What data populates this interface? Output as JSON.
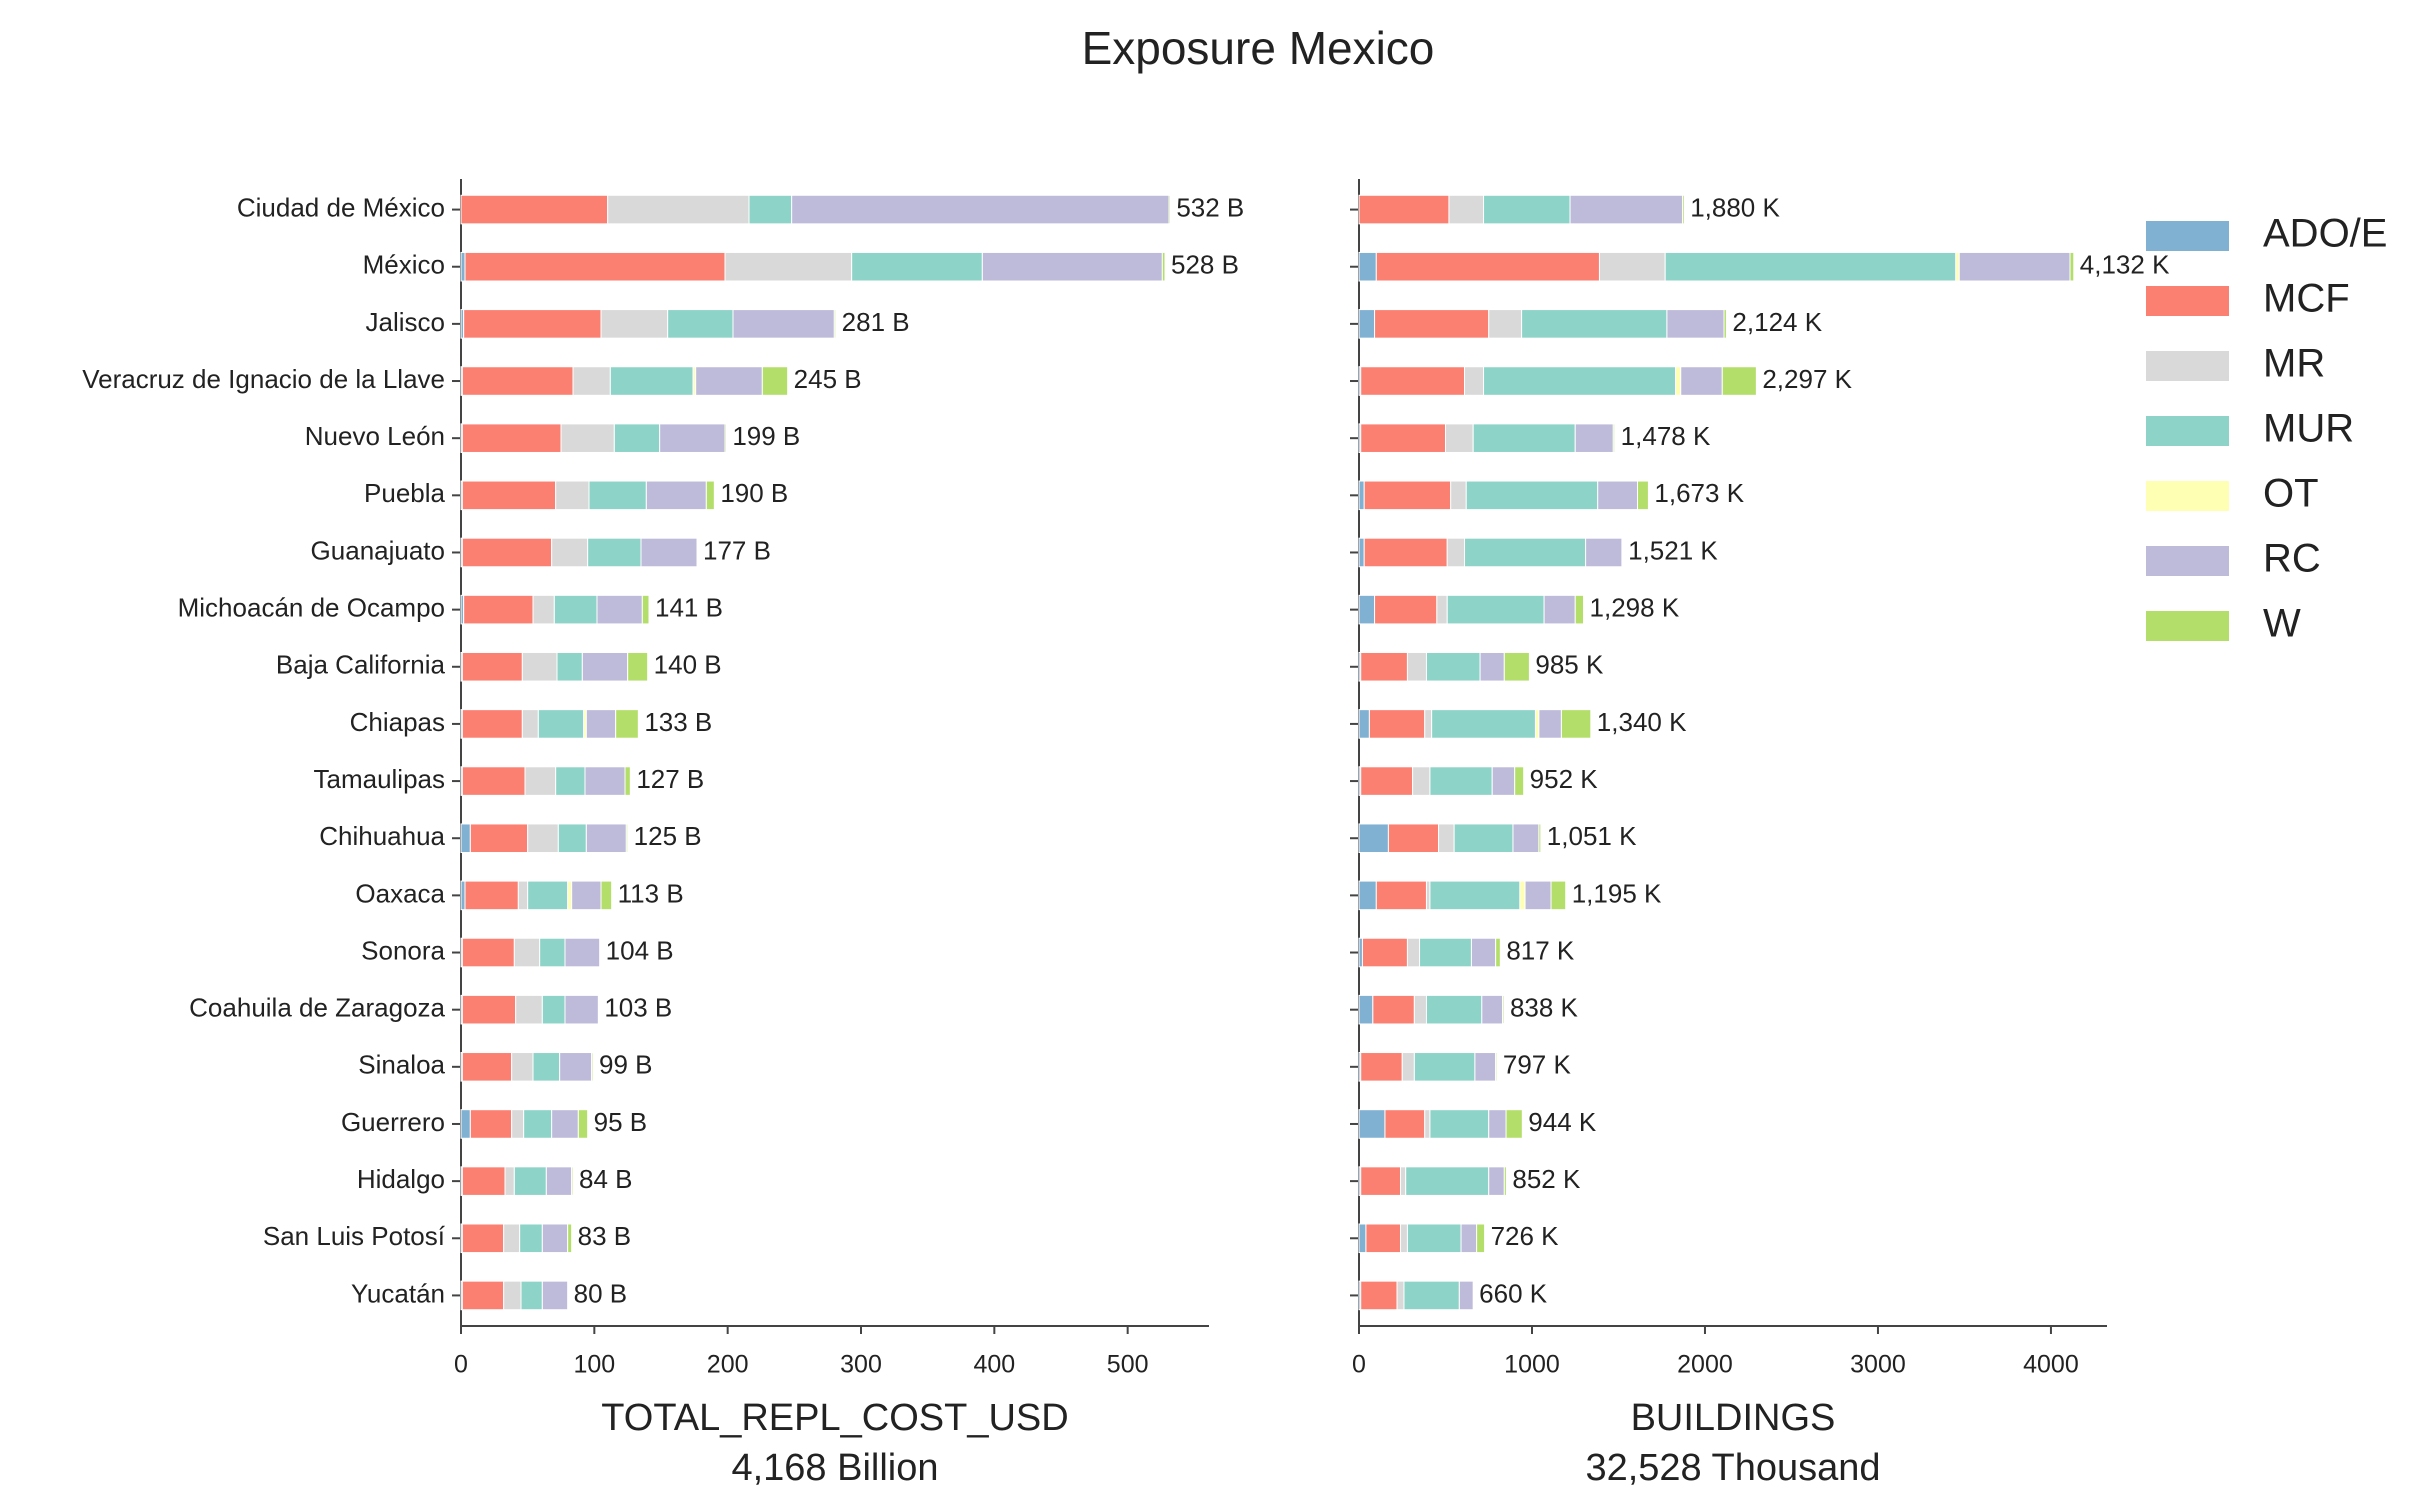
{
  "chart_data": {
    "type": "bar",
    "orientation": "horizontal",
    "stacked": true,
    "title": "Exposure Mexico",
    "legend": "upper right",
    "categories": [
      "Ciudad de México",
      "México",
      "Jalisco",
      "Veracruz de Ignacio de la Llave",
      "Nuevo León",
      "Puebla",
      "Guanajuato",
      "Michoacán de Ocampo",
      "Baja California",
      "Chiapas",
      "Tamaulipas",
      "Chihuahua",
      "Oaxaca",
      "Sonora",
      "Coahuila de Zaragoza",
      "Sinaloa",
      "Guerrero",
      "Hidalgo",
      "San Luis Potosí",
      "Yucatán"
    ],
    "series": [
      {
        "name": "ADO/E",
        "color": "#80b1d3"
      },
      {
        "name": "MCF",
        "color": "#fb8072"
      },
      {
        "name": "MR",
        "color": "#d9d9d9"
      },
      {
        "name": "MUR",
        "color": "#8dd3c7"
      },
      {
        "name": "OT",
        "color": "#ffffb3"
      },
      {
        "name": "RC",
        "color": "#bebada"
      },
      {
        "name": "W",
        "color": "#b3de69"
      }
    ],
    "panels": [
      {
        "xlabel": "TOTAL_REPL_COST_USD",
        "xlabel_total": "4,168 Billion",
        "xlim": [
          0,
          561
        ],
        "xticks": [
          0,
          100,
          200,
          300,
          400,
          500
        ],
        "values": [
          [
            0,
            3,
            2,
            1,
            1,
            1,
            1,
            2,
            1,
            1,
            1,
            7,
            3,
            1,
            1,
            1,
            7,
            1,
            1,
            1
          ],
          [
            110,
            195,
            103,
            83,
            74,
            70,
            67,
            52,
            45,
            45,
            47,
            43,
            40,
            39,
            40,
            37,
            31,
            32,
            31,
            31
          ],
          [
            106,
            95,
            50,
            28,
            40,
            25,
            27,
            16,
            26,
            12,
            23,
            23,
            7,
            19,
            20,
            16,
            9,
            7,
            12,
            13
          ],
          [
            32,
            98,
            49,
            62,
            34,
            43,
            40,
            32,
            19,
            34,
            22,
            21,
            30,
            19,
            17,
            20,
            21,
            24,
            17,
            16
          ],
          [
            0,
            0,
            0,
            2,
            0,
            0,
            0,
            0,
            0,
            2,
            0,
            0,
            3,
            0,
            0,
            0,
            0,
            0,
            0,
            0
          ],
          [
            283,
            135,
            76,
            50,
            49,
            45,
            42,
            34,
            34,
            22,
            30,
            30,
            22,
            26,
            25,
            24,
            20,
            19,
            19,
            19
          ],
          [
            1,
            2,
            1,
            19,
            1,
            6,
            0,
            5,
            15,
            17,
            4,
            1,
            8,
            0,
            0,
            1,
            7,
            1,
            3,
            0
          ]
        ],
        "totals": [
          532,
          528,
          281,
          245,
          199,
          190,
          177,
          141,
          140,
          133,
          127,
          125,
          113,
          104,
          103,
          99,
          95,
          84,
          83,
          80
        ],
        "total_labels": [
          "532 B",
          "528 B",
          "281 B",
          "245 B",
          "199 B",
          "190 B",
          "177 B",
          "141 B",
          "140 B",
          "133 B",
          "127 B",
          "125 B",
          "113 B",
          "104 B",
          "103 B",
          "99 B",
          "95 B",
          "84 B",
          "83 B",
          "80 B"
        ]
      },
      {
        "xlabel": "BUILDINGS",
        "xlabel_total": "32,528 Thousand",
        "xlim": [
          0,
          4324
        ],
        "xticks": [
          0,
          1000,
          2000,
          3000,
          4000
        ],
        "values": [
          [
            0,
            100,
            90,
            10,
            10,
            30,
            30,
            90,
            10,
            60,
            10,
            170,
            100,
            20,
            80,
            10,
            150,
            10,
            40,
            10
          ],
          [
            520,
            1290,
            660,
            600,
            490,
            500,
            480,
            360,
            270,
            320,
            300,
            290,
            290,
            260,
            240,
            240,
            230,
            230,
            200,
            210
          ],
          [
            200,
            380,
            190,
            110,
            160,
            90,
            100,
            60,
            110,
            40,
            100,
            90,
            20,
            70,
            70,
            70,
            30,
            30,
            40,
            40
          ],
          [
            500,
            1680,
            840,
            1110,
            590,
            760,
            700,
            560,
            310,
            600,
            360,
            340,
            520,
            300,
            320,
            350,
            340,
            480,
            310,
            320
          ],
          [
            0,
            20,
            0,
            30,
            0,
            0,
            0,
            0,
            0,
            20,
            0,
            0,
            30,
            0,
            0,
            0,
            0,
            0,
            0,
            0
          ],
          [
            650,
            640,
            330,
            240,
            220,
            230,
            210,
            180,
            140,
            130,
            130,
            150,
            150,
            140,
            120,
            120,
            100,
            90,
            90,
            80
          ],
          [
            10,
            22,
            14,
            197,
            8,
            63,
            1,
            48,
            145,
            170,
            52,
            11,
            85,
            27,
            8,
            7,
            94,
            12,
            46,
            0
          ]
        ],
        "totals": [
          1880,
          4132,
          2124,
          2297,
          1478,
          1673,
          1521,
          1298,
          985,
          1340,
          952,
          1051,
          1195,
          817,
          838,
          797,
          944,
          852,
          726,
          660
        ],
        "total_labels": [
          "1,880 K",
          "4,132 K",
          "2,124 K",
          "2,297 K",
          "1,478 K",
          "1,673 K",
          "1,521 K",
          "1,298 K",
          "985 K",
          "1,340 K",
          "952 K",
          "1,051 K",
          "1,195 K",
          "817 K",
          "838 K",
          "797 K",
          "944 K",
          "852 K",
          "726 K",
          "660 K"
        ]
      }
    ]
  }
}
